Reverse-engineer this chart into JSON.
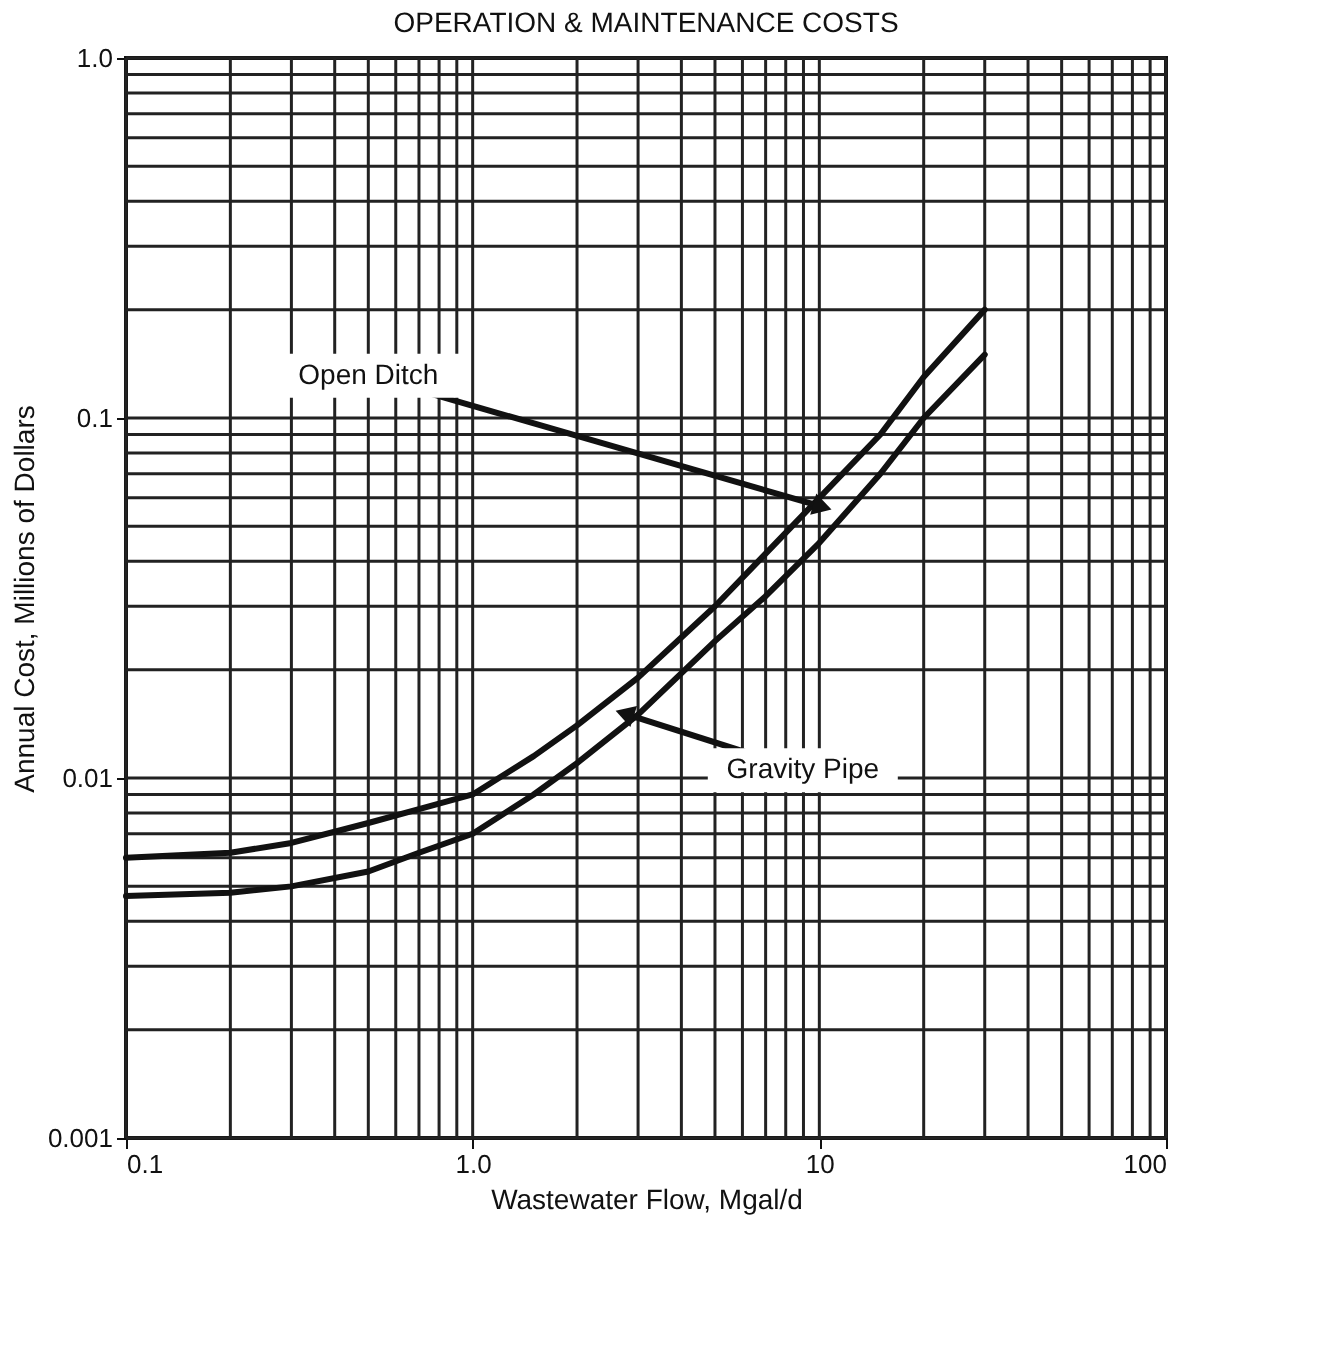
{
  "chart_data": {
    "type": "line",
    "title": "OPERATION & MAINTENANCE COSTS",
    "xlabel": "Wastewater Flow, Mgal/d",
    "ylabel": "Annual Cost, Millions of Dollars",
    "log": "xy",
    "grid": true,
    "line_style": "solid",
    "marker": "none",
    "xlim": [
      0.1,
      100
    ],
    "xticks": [
      0.1,
      {
        "value": 1,
        "label": "1.0"
      },
      10,
      100
    ],
    "ylim": [
      0.001,
      1
    ],
    "yticks": [
      0.001,
      0.01,
      0.1,
      {
        "value": 1,
        "label": "1.0"
      }
    ],
    "series": [
      {
        "x": [
          0.1,
          0.2,
          0.3,
          0.5,
          0.7,
          1,
          1.5,
          2,
          3,
          5,
          7,
          10,
          15,
          20,
          30
        ],
        "values": [
          0.006,
          0.0062,
          0.0066,
          0.0075,
          0.0082,
          0.009,
          0.0115,
          0.014,
          0.019,
          0.03,
          0.042,
          0.06,
          0.09,
          0.13,
          0.2
        ],
        "color": "#111111"
      },
      {
        "x": [
          0.1,
          0.2,
          0.3,
          0.5,
          0.7,
          1,
          1.5,
          2,
          3,
          5,
          7,
          10,
          15,
          20,
          30
        ],
        "values": [
          0.0047,
          0.0048,
          0.005,
          0.0055,
          0.0062,
          0.007,
          0.009,
          0.011,
          0.015,
          0.024,
          0.032,
          0.045,
          0.07,
          0.1,
          0.15
        ],
        "color": "#111111"
      }
    ],
    "annotations": [
      {
        "text": "Open Ditch",
        "x": 10,
        "y": 0.057
      },
      {
        "text": "Gravity Pipe",
        "x": 2.8,
        "y": 0.015
      }
    ]
  }
}
